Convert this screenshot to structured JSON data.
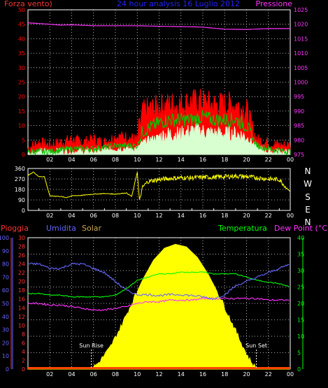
{
  "colors": {
    "background": "#000000",
    "frame": "#ffffff",
    "grid": "#ffffff",
    "wind_gust": "#ff0000",
    "wind_avg": "#00c800",
    "wind_low": "#d8ffd0",
    "pressure": "#ff33ff",
    "wind_dir": "#ffff00",
    "title": "#0000ff",
    "rain": "#ff3333",
    "humidity": "#6666ff",
    "solar": "#ffff00",
    "solar_label": "#c8a850",
    "temperature": "#00ff00",
    "dew_point": "#ff33ff",
    "rain_bar": "#ff4400"
  },
  "header": {
    "left": "Forza vento)",
    "center": "24 hour analysis 16 Luglio 2012",
    "right": "Pressione"
  },
  "panel3_labels": {
    "rain": "Pioggia",
    "humidity": "Umidita",
    "solar": "Solar",
    "temperature": "Temperatura",
    "dew_point": "Dew Point (°C)"
  },
  "direction_labels": [
    "N",
    "W",
    "S",
    "E",
    "N"
  ],
  "sun": {
    "rise_label": "Sun Rise",
    "set_label": "Sun Set",
    "rise_hour": 5.8,
    "set_hour": 20.9
  },
  "chart_data": [
    {
      "type": "line",
      "name": "wind-pressure",
      "x_ticks": [
        "02",
        "04",
        "06",
        "08",
        "10",
        "12",
        "14",
        "16",
        "18",
        "20",
        "22",
        "00"
      ],
      "y_left_ticks": [
        0,
        5,
        10,
        15,
        20,
        25,
        30,
        35,
        40,
        45,
        50
      ],
      "y_left_range": [
        0,
        50
      ],
      "y_right_ticks": [
        975,
        980,
        985,
        990,
        995,
        1000,
        1005,
        1010,
        1015,
        1020,
        1025
      ],
      "y_right_range": [
        975,
        1025
      ],
      "series": [
        {
          "x": [
            0,
            1,
            2,
            3,
            4,
            5,
            6,
            7,
            8,
            9,
            10,
            10.5,
            11,
            12,
            13,
            14,
            15,
            16,
            17,
            18,
            19,
            20,
            20.5,
            21,
            22,
            23,
            24
          ],
          "values": [
            2,
            4,
            3,
            4,
            5,
            4,
            5,
            4,
            6,
            6,
            5,
            14,
            15,
            16,
            17,
            17,
            18,
            18,
            17,
            17,
            17,
            15,
            8,
            5,
            4,
            3,
            3
          ]
        },
        {
          "x": [
            0,
            2,
            4,
            6,
            8,
            10,
            10.5,
            11,
            12,
            13,
            14,
            15,
            16,
            17,
            18,
            19,
            20,
            20.5,
            21,
            22,
            24
          ],
          "values": [
            1,
            1,
            2,
            2,
            3,
            3,
            8,
            9,
            11,
            12,
            12,
            12,
            13,
            12,
            12,
            12,
            10,
            6,
            3,
            2,
            1
          ]
        },
        {
          "x": [
            0,
            2,
            4,
            6,
            8,
            10,
            10.5,
            11,
            12,
            13,
            14,
            15,
            16,
            17,
            18,
            19,
            20,
            20.5,
            21,
            22,
            24
          ],
          "values": [
            0.5,
            1,
            1,
            1,
            2,
            2,
            4,
            5,
            6,
            7,
            7,
            8,
            8,
            7,
            7,
            7,
            6,
            4,
            2,
            1,
            0.5
          ]
        },
        {
          "x": [
            0,
            2,
            3,
            4,
            6,
            8,
            10,
            12,
            14,
            16,
            18,
            20,
            22,
            24
          ],
          "values": [
            1020.5,
            1020,
            1019.7,
            1019.8,
            1019.5,
            1019.5,
            1019.5,
            1019.3,
            1019.2,
            1019,
            1018.3,
            1018.2,
            1018.5,
            1018.5
          ]
        }
      ]
    },
    {
      "type": "line",
      "name": "wind-direction",
      "x_ticks": [
        "02",
        "04",
        "06",
        "08",
        "10",
        "12",
        "14",
        "16",
        "18",
        "20",
        "22",
        "00"
      ],
      "y_ticks": [
        0,
        90,
        180,
        270,
        360
      ],
      "y_range": [
        0,
        360
      ],
      "series": [
        {
          "x": [
            0,
            0.5,
            1,
            1.5,
            2,
            3,
            3.5,
            4,
            5,
            6,
            7,
            8,
            9,
            9.5,
            10,
            10.2,
            10.5,
            11,
            12,
            13,
            14,
            15,
            16,
            17,
            18,
            19,
            20,
            21,
            22,
            23,
            23.8,
            24
          ],
          "values": [
            300,
            330,
            290,
            290,
            125,
            120,
            110,
            125,
            130,
            140,
            145,
            140,
            150,
            120,
            330,
            90,
            200,
            250,
            265,
            275,
            280,
            280,
            285,
            285,
            290,
            295,
            290,
            280,
            270,
            265,
            180,
            160
          ]
        }
      ]
    },
    {
      "type": "line",
      "name": "weather-conditions",
      "x_ticks": [
        "02",
        "04",
        "06",
        "08",
        "10",
        "12",
        "14",
        "16",
        "18",
        "20",
        "22",
        "00"
      ],
      "y_rain_ticks": [
        0,
        10,
        20,
        30,
        40,
        50,
        60,
        70,
        80,
        90,
        100
      ],
      "y_rain_range": [
        0,
        100
      ],
      "y_humidity_ticks": [
        0,
        2,
        4,
        6,
        8,
        10,
        12,
        14,
        16,
        18,
        20,
        22,
        24,
        26,
        28,
        30
      ],
      "y_humidity_range": [
        0,
        30
      ],
      "y_temperature_ticks": [
        0,
        5,
        10,
        15,
        20,
        25,
        30,
        35,
        40
      ],
      "y_temperature_range": [
        0,
        40
      ],
      "series": [
        {
          "x": [
            0,
            24
          ],
          "values": [
            0,
            0
          ]
        },
        {
          "x": [
            0,
            1,
            2,
            3,
            4,
            5,
            6,
            7,
            8,
            9,
            10,
            11,
            12,
            13,
            14,
            15,
            16,
            17,
            18,
            19,
            20,
            21,
            22,
            23,
            24
          ],
          "values": [
            24,
            24,
            23,
            23,
            24,
            24,
            23,
            22,
            20,
            18,
            17,
            17,
            16.8,
            17,
            17,
            16.8,
            16.5,
            16,
            17,
            19,
            20,
            21,
            22,
            23,
            24
          ]
        },
        {
          "x": [
            0,
            1,
            2,
            3,
            4,
            5,
            6,
            7,
            8,
            9,
            10,
            11,
            12,
            13,
            14,
            15,
            16,
            17,
            18,
            19,
            20,
            21,
            22,
            23,
            24
          ],
          "values": [
            23,
            23,
            22.5,
            22.5,
            22,
            22,
            22,
            22,
            22.5,
            24.5,
            27,
            28,
            29,
            29,
            29.5,
            29.5,
            29.5,
            29,
            29,
            29,
            28,
            27,
            26.5,
            26,
            25
          ]
        },
        {
          "x": [
            0,
            1,
            2,
            3,
            4,
            5,
            6,
            7,
            8,
            9,
            10,
            11,
            12,
            13,
            14,
            15,
            16,
            17,
            18,
            19,
            20,
            21,
            22,
            23,
            24
          ],
          "values": [
            20,
            20,
            19.5,
            19.5,
            19,
            18.5,
            18,
            18,
            18.5,
            19,
            20,
            20.5,
            20.5,
            21,
            21,
            21,
            21.5,
            21.5,
            21.5,
            21.5,
            21.5,
            21.5,
            21,
            21,
            21
          ]
        },
        {
          "x": [
            0,
            5.8,
            6.5,
            7.5,
            8.5,
            9.5,
            10.5,
            11.5,
            12.5,
            13.5,
            14.5,
            15.5,
            16.5,
            17.5,
            18.5,
            19.5,
            20.2,
            20.9,
            24
          ],
          "values": [
            0,
            0,
            5,
            16,
            32,
            50,
            68,
            83,
            92,
            95,
            93,
            85,
            72,
            56,
            38,
            20,
            8,
            0,
            0
          ]
        }
      ]
    }
  ]
}
